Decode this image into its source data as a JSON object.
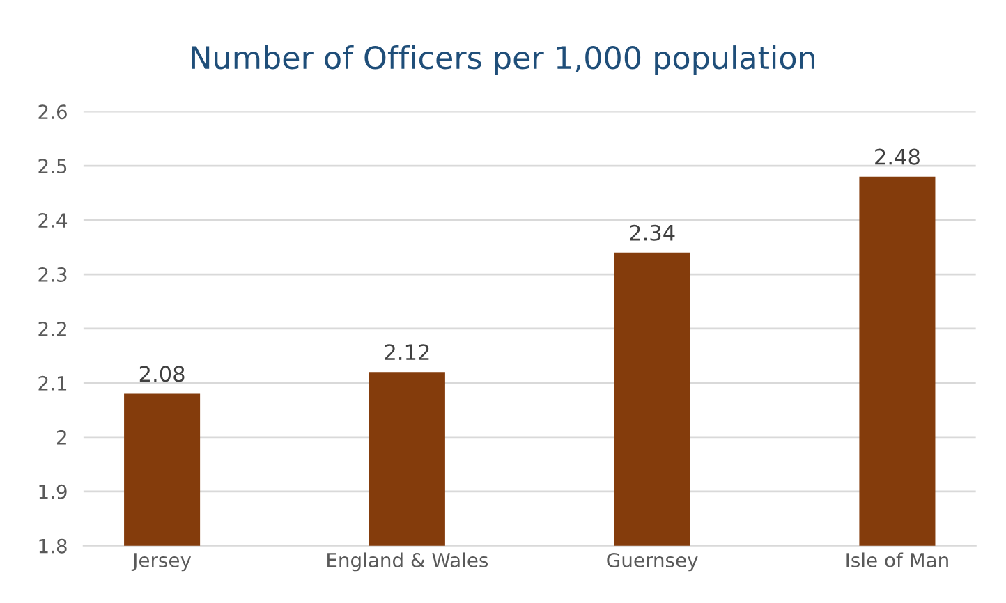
{
  "chart_data": {
    "type": "bar",
    "title": "Number of Officers per 1,000 population",
    "categories": [
      "Jersey",
      "England & Wales",
      "Guernsey",
      "Isle of Man"
    ],
    "values": [
      2.08,
      2.12,
      2.34,
      2.48
    ],
    "color": "#843c0c",
    "ylim": [
      1.8,
      2.6
    ],
    "yticks": [
      1.8,
      1.9,
      2,
      2.1,
      2.2,
      2.3,
      2.4,
      2.5,
      2.6
    ],
    "grid": "y",
    "data_labels": true
  }
}
